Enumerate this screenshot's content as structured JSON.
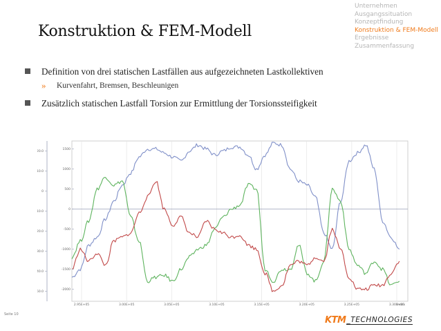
{
  "nav": {
    "items": [
      "Unternehmen",
      "Ausgangssituation",
      "Konzeptfindung",
      "Konstruktion & FEM-Modell",
      "Ergebnisse",
      "Zusammenfassung"
    ],
    "active_index": 3,
    "active_color": "#f07a1a",
    "inactive_color": "#b5b5b5"
  },
  "slide": {
    "title": "Konstruktion & FEM-Modell",
    "bullet1": "Definition von drei statischen Lastfällen aus aufgezeichneten Lastkollektiven",
    "sub1": "Kurvenfahrt, Bremsen, Beschleunigen",
    "sub_marker": "»",
    "bullet2": "Zusätzlich statischen Lastfall Torsion zur Ermittlung der Torsionssteifigkeit"
  },
  "footer": {
    "page": "Seite 10",
    "logo_ktm": "KTM",
    "logo_tech": "_TECHNOLOGIES"
  },
  "chart_data": {
    "type": "line",
    "title": "",
    "xlabel": "",
    "ylabel": "",
    "x_tick_labels": [
      "2.95E+05",
      "3.00E+05",
      "3.05E+05",
      "3.10E+05",
      "3.15E+05",
      "3.20E+05",
      "3.25E+05",
      "3.30E+05"
    ],
    "x_end_label": "Index",
    "xlim": [
      294000,
      334000
    ],
    "y_left_tick_labels": [
      "20.0",
      "10.0",
      "0",
      "-10.0",
      "-20.0",
      "-30.0",
      "-40.0",
      "-50.0"
    ],
    "y_left_lim": [
      -55,
      25
    ],
    "y_right_tick_labels": [
      "1500",
      "1000",
      "500",
      "0",
      "-500",
      "-1000",
      "-1500",
      "-2000"
    ],
    "y_right_lim": [
      -2300,
      1700
    ],
    "series": [
      {
        "name": "white",
        "color": "#7f8fc8",
        "x": [
          294000,
          295000,
          296000,
          297000,
          298000,
          299000,
          300000,
          301000,
          302000,
          303000,
          304000,
          305000,
          306000,
          307000,
          308000,
          309000,
          310000,
          311000,
          312000,
          313000,
          314000,
          315000,
          316000,
          317000,
          318000,
          319000,
          320000,
          321000,
          322000,
          323000,
          324000,
          325000,
          326000,
          327000,
          328000,
          329000,
          330000,
          331000,
          332000,
          333000
        ],
        "y": [
          -1700,
          -1500,
          -900,
          -700,
          -250,
          200,
          600,
          900,
          1300,
          1500,
          1500,
          1400,
          1300,
          1200,
          1450,
          1600,
          1500,
          1350,
          1450,
          1550,
          1550,
          1350,
          1000,
          1350,
          1650,
          1600,
          1000,
          700,
          600,
          300,
          -600,
          -1000,
          200,
          1200,
          1400,
          1600,
          1000,
          -300,
          -700,
          -1000
        ]
      },
      {
        "name": "green",
        "color": "#5db35d",
        "x": [
          294000,
          295000,
          296000,
          297000,
          298000,
          299000,
          300000,
          301000,
          302000,
          303000,
          304000,
          305000,
          306000,
          307000,
          308000,
          309000,
          310000,
          311000,
          312000,
          313000,
          314000,
          315000,
          316000,
          317000,
          318000,
          319000,
          320000,
          321000,
          322000,
          323000,
          324000,
          325000,
          326000,
          327000,
          328000,
          329000,
          330000,
          331000,
          332000,
          333000
        ],
        "y": [
          -1200,
          -800,
          -300,
          500,
          800,
          600,
          700,
          -200,
          -800,
          -1800,
          -1700,
          -1650,
          -1800,
          -1500,
          -1200,
          -1000,
          -900,
          -500,
          -200,
          0,
          100,
          600,
          500,
          -1500,
          -1800,
          -1500,
          -1500,
          -900,
          -1600,
          -1800,
          -1300,
          500,
          200,
          -1000,
          -1400,
          -1600,
          -1300,
          -1500,
          -1900,
          -1800
        ]
      },
      {
        "name": "red",
        "color": "#c14848",
        "x": [
          294000,
          295000,
          296000,
          297000,
          298000,
          299000,
          300000,
          301000,
          302000,
          303000,
          304000,
          305000,
          306000,
          307000,
          308000,
          309000,
          310000,
          311000,
          312000,
          313000,
          314000,
          315000,
          316000,
          317000,
          318000,
          319000,
          320000,
          321000,
          322000,
          323000,
          324000,
          325000,
          326000,
          327000,
          328000,
          329000,
          330000,
          331000,
          332000,
          333000
        ],
        "y": [
          -1500,
          -1000,
          -1300,
          -1100,
          -1400,
          -800,
          -700,
          -600,
          -100,
          300,
          700,
          0,
          -400,
          -200,
          -600,
          -700,
          -300,
          -500,
          -600,
          -700,
          -650,
          -900,
          -1000,
          -1600,
          -2050,
          -1900,
          -1400,
          -1300,
          -1400,
          -1200,
          -1300,
          -500,
          -1000,
          -1700,
          -2000,
          -2000,
          -1900,
          -1900,
          -1600,
          -1300
        ]
      }
    ]
  }
}
